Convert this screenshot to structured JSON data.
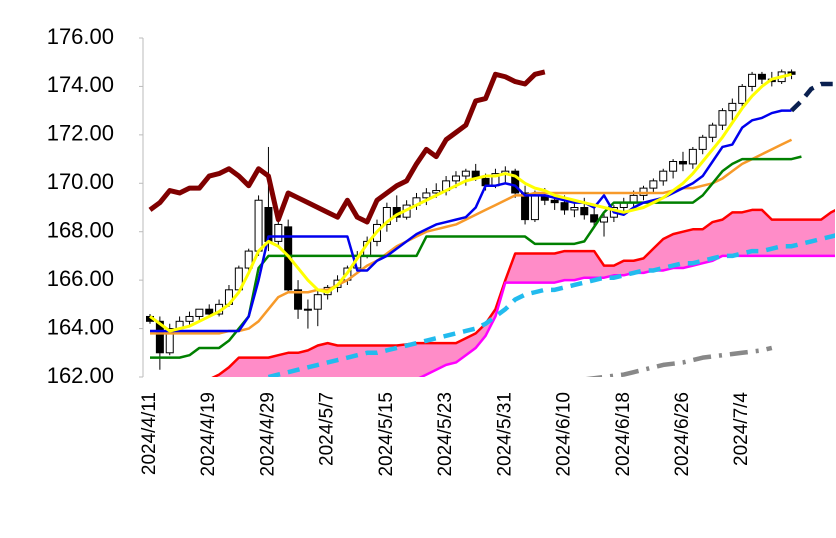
{
  "chart_data": {
    "type": "candlestick",
    "categories": [
      "2024/4/11",
      null,
      null,
      null,
      null,
      null,
      "2024/4/19",
      null,
      null,
      null,
      null,
      null,
      "2024/4/29",
      null,
      null,
      null,
      null,
      null,
      "2024/5/7",
      null,
      null,
      null,
      null,
      null,
      "2024/5/15",
      null,
      null,
      null,
      null,
      null,
      "2024/5/23",
      null,
      null,
      null,
      null,
      null,
      "2024/5/31",
      null,
      null,
      null,
      null,
      null,
      "2024/6/10",
      null,
      null,
      null,
      null,
      null,
      "2024/6/18",
      null,
      null,
      null,
      null,
      null,
      "2024/6/26",
      null,
      null,
      null,
      null,
      null,
      "2024/7/4",
      null,
      null,
      null,
      null,
      null,
      null,
      null,
      null,
      null,
      null
    ],
    "candles": [
      [
        164.5,
        164.6,
        164.2,
        164.3
      ],
      [
        164.3,
        164.5,
        162.3,
        163.0
      ],
      [
        163.0,
        164.2,
        162.9,
        164.0
      ],
      [
        164.0,
        164.5,
        163.9,
        164.3
      ],
      [
        164.3,
        164.7,
        164.1,
        164.5
      ],
      [
        164.5,
        164.8,
        164.3,
        164.8
      ],
      [
        164.8,
        165.0,
        164.5,
        164.6
      ],
      [
        164.6,
        165.2,
        164.5,
        165.0
      ],
      [
        165.0,
        165.8,
        164.9,
        165.6
      ],
      [
        165.6,
        166.6,
        165.5,
        166.5
      ],
      [
        166.5,
        167.3,
        166.3,
        167.2
      ],
      [
        167.2,
        169.5,
        167.0,
        169.3
      ],
      [
        169.0,
        171.5,
        167.2,
        167.6
      ],
      [
        167.6,
        168.6,
        167.4,
        168.3
      ],
      [
        168.2,
        168.5,
        165.5,
        165.6
      ],
      [
        165.6,
        166.0,
        164.4,
        164.8
      ],
      [
        164.8,
        165.2,
        164.0,
        164.8
      ],
      [
        164.8,
        165.6,
        164.1,
        165.4
      ],
      [
        165.4,
        165.8,
        165.2,
        165.7
      ],
      [
        165.7,
        166.2,
        165.5,
        166.0
      ],
      [
        166.0,
        166.6,
        165.8,
        166.5
      ],
      [
        166.5,
        167.2,
        166.3,
        167.0
      ],
      [
        167.0,
        167.8,
        166.9,
        167.6
      ],
      [
        167.6,
        168.5,
        167.4,
        168.3
      ],
      [
        168.3,
        169.2,
        168.0,
        169.0
      ],
      [
        169.0,
        169.5,
        168.4,
        168.6
      ],
      [
        168.6,
        169.3,
        168.5,
        169.1
      ],
      [
        169.1,
        169.6,
        168.9,
        169.4
      ],
      [
        169.4,
        169.8,
        169.1,
        169.6
      ],
      [
        169.6,
        170.0,
        169.4,
        169.7
      ],
      [
        169.7,
        170.3,
        169.5,
        170.1
      ],
      [
        170.1,
        170.5,
        169.8,
        170.3
      ],
      [
        170.3,
        170.6,
        169.9,
        170.5
      ],
      [
        170.5,
        170.8,
        170.1,
        170.2
      ],
      [
        170.2,
        170.4,
        169.7,
        169.9
      ],
      [
        169.9,
        170.6,
        169.8,
        170.4
      ],
      [
        170.4,
        170.7,
        170.0,
        170.5
      ],
      [
        170.5,
        170.6,
        169.4,
        169.6
      ],
      [
        169.6,
        169.9,
        168.3,
        168.5
      ],
      [
        168.5,
        169.7,
        168.4,
        169.5
      ],
      [
        169.5,
        169.8,
        169.1,
        169.3
      ],
      [
        169.3,
        169.6,
        168.9,
        169.2
      ],
      [
        169.2,
        169.5,
        168.7,
        168.9
      ],
      [
        168.9,
        169.3,
        168.6,
        169.0
      ],
      [
        169.0,
        169.4,
        168.5,
        168.7
      ],
      [
        168.7,
        169.0,
        168.2,
        168.4
      ],
      [
        168.4,
        168.8,
        167.8,
        168.6
      ],
      [
        168.6,
        169.1,
        168.4,
        169.0
      ],
      [
        169.0,
        169.4,
        168.8,
        169.2
      ],
      [
        169.2,
        169.7,
        169.0,
        169.5
      ],
      [
        169.5,
        169.9,
        169.3,
        169.8
      ],
      [
        169.8,
        170.2,
        169.6,
        170.1
      ],
      [
        170.1,
        170.6,
        169.9,
        170.5
      ],
      [
        170.5,
        171.0,
        170.2,
        170.9
      ],
      [
        170.9,
        171.3,
        170.5,
        170.8
      ],
      [
        170.8,
        171.5,
        170.6,
        171.4
      ],
      [
        171.4,
        172.0,
        171.2,
        171.9
      ],
      [
        171.9,
        172.5,
        171.7,
        172.4
      ],
      [
        172.4,
        173.1,
        172.2,
        173.0
      ],
      [
        173.0,
        173.5,
        172.6,
        173.3
      ],
      [
        173.3,
        174.1,
        173.1,
        174.0
      ],
      [
        174.0,
        174.6,
        173.8,
        174.5
      ],
      [
        174.5,
        174.6,
        174.1,
        174.3
      ],
      [
        174.3,
        174.6,
        174.0,
        174.2
      ],
      [
        174.2,
        174.7,
        174.1,
        174.6
      ],
      [
        174.6,
        174.7,
        174.3,
        174.5
      ]
    ],
    "cloud": {
      "color": "#ff8cc8",
      "between": [
        0,
        1
      ]
    },
    "series": [
      {
        "color": "#ff0000",
        "width": 2.5,
        "values": [
          null,
          null,
          null,
          null,
          null,
          null,
          161.9,
          162.1,
          162.4,
          162.8,
          162.8,
          162.8,
          162.8,
          162.9,
          163.0,
          163.0,
          163.1,
          163.3,
          163.4,
          163.3,
          163.3,
          163.3,
          163.3,
          163.3,
          163.3,
          163.3,
          163.35,
          163.4,
          163.4,
          163.4,
          163.4,
          163.4,
          163.6,
          163.8,
          164.2,
          164.8,
          166.0,
          167.1,
          167.1,
          167.1,
          167.1,
          167.1,
          167.2,
          167.2,
          167.2,
          167.2,
          166.6,
          166.6,
          166.8,
          166.8,
          166.9,
          167.3,
          167.7,
          167.9,
          168.0,
          168.1,
          168.1,
          168.4,
          168.5,
          168.8,
          168.8,
          168.9,
          168.9,
          168.5,
          168.5,
          168.5,
          168.5,
          168.5,
          168.5,
          168.8,
          169.0
        ]
      },
      {
        "color": "#ff00ff",
        "width": 2.5,
        "values": [
          null,
          null,
          null,
          null,
          null,
          null,
          161.0,
          161.0,
          161.0,
          161.0,
          161.1,
          161.1,
          161.2,
          161.2,
          161.3,
          161.3,
          161.4,
          161.4,
          161.5,
          161.5,
          161.6,
          161.6,
          161.7,
          161.7,
          161.8,
          161.8,
          161.9,
          161.9,
          162.1,
          162.3,
          162.5,
          162.6,
          162.9,
          163.2,
          163.7,
          164.5,
          165.9,
          165.9,
          165.9,
          165.9,
          165.9,
          165.9,
          166.0,
          166.0,
          166.1,
          166.1,
          166.1,
          166.2,
          166.2,
          166.3,
          166.3,
          166.4,
          166.4,
          166.5,
          166.5,
          166.6,
          166.7,
          166.8,
          167.0,
          167.0,
          167.0,
          167.0,
          167.0,
          167.0,
          167.0,
          167.0,
          167.0,
          167.0,
          167.0,
          167.0,
          167.0
        ]
      },
      {
        "color": "#22bbee",
        "width": 4.5,
        "style": "dashed",
        "values": [
          null,
          null,
          null,
          null,
          null,
          null,
          null,
          null,
          null,
          null,
          null,
          null,
          162.0,
          162.1,
          162.2,
          162.3,
          162.4,
          162.5,
          162.6,
          162.7,
          162.8,
          162.9,
          163.0,
          163.0,
          163.1,
          163.2,
          163.3,
          163.4,
          163.5,
          163.6,
          163.7,
          163.8,
          163.9,
          164.0,
          164.2,
          164.5,
          164.8,
          165.2,
          165.4,
          165.5,
          165.6,
          165.6,
          165.7,
          165.8,
          165.9,
          166.0,
          166.1,
          166.1,
          166.2,
          166.3,
          166.4,
          166.4,
          166.5,
          166.6,
          166.7,
          166.7,
          166.8,
          166.9,
          167.0,
          167.0,
          167.1,
          167.2,
          167.2,
          167.3,
          167.4,
          167.4,
          167.5,
          167.6,
          167.7,
          167.8,
          167.9
        ]
      },
      {
        "color": "#888888",
        "width": 4.5,
        "style": "dashdot",
        "values": [
          null,
          null,
          null,
          null,
          null,
          null,
          null,
          null,
          null,
          null,
          null,
          null,
          null,
          null,
          null,
          null,
          null,
          null,
          null,
          null,
          null,
          null,
          null,
          null,
          null,
          null,
          null,
          null,
          null,
          null,
          null,
          null,
          null,
          null,
          null,
          null,
          null,
          null,
          null,
          null,
          null,
          null,
          null,
          null,
          161.9,
          161.95,
          162.0,
          162.05,
          162.1,
          162.2,
          162.3,
          162.4,
          162.5,
          162.55,
          162.6,
          162.7,
          162.8,
          162.85,
          162.9,
          162.95,
          163.0,
          163.05,
          163.1,
          163.2,
          null,
          null,
          null,
          null,
          null,
          null,
          null
        ]
      },
      {
        "color": "#f79a2a",
        "width": 2.5,
        "values": [
          163.8,
          163.8,
          163.8,
          163.8,
          163.8,
          163.8,
          163.8,
          163.8,
          163.9,
          163.9,
          164.0,
          164.3,
          164.8,
          165.3,
          165.5,
          165.5,
          165.5,
          165.6,
          165.6,
          165.8,
          166.0,
          166.3,
          166.6,
          166.8,
          167.1,
          167.4,
          167.6,
          167.8,
          168.0,
          168.1,
          168.2,
          168.3,
          168.5,
          168.7,
          168.9,
          169.1,
          169.3,
          169.5,
          169.5,
          169.6,
          169.6,
          169.6,
          169.6,
          169.6,
          169.6,
          169.6,
          169.6,
          169.6,
          169.6,
          169.6,
          169.6,
          169.6,
          169.6,
          169.7,
          169.8,
          169.8,
          169.9,
          170.0,
          170.2,
          170.5,
          170.8,
          171.0,
          171.2,
          171.4,
          171.6,
          171.8,
          null,
          null,
          null,
          null,
          null
        ]
      },
      {
        "color": "#008000",
        "width": 2.5,
        "values": [
          162.8,
          162.8,
          162.8,
          162.8,
          162.9,
          163.2,
          163.2,
          163.2,
          163.5,
          164.0,
          164.5,
          166.5,
          167.0,
          167.0,
          167.0,
          167.0,
          167.0,
          167.0,
          167.0,
          167.0,
          167.0,
          167.0,
          167.0,
          167.0,
          167.0,
          167.0,
          167.0,
          167.0,
          167.8,
          167.8,
          167.8,
          167.8,
          167.8,
          167.8,
          167.8,
          167.8,
          167.8,
          167.8,
          167.8,
          167.5,
          167.5,
          167.5,
          167.5,
          167.5,
          167.6,
          168.2,
          168.8,
          169.2,
          169.2,
          169.2,
          169.2,
          169.2,
          169.2,
          169.2,
          169.2,
          169.2,
          169.5,
          170.0,
          170.5,
          170.8,
          171.0,
          171.0,
          171.0,
          171.0,
          171.0,
          171.0,
          171.1,
          null,
          null,
          null,
          null
        ]
      },
      {
        "color": "#0000ee",
        "width": 2.5,
        "values": [
          163.9,
          163.9,
          163.9,
          163.9,
          163.9,
          163.9,
          163.9,
          163.9,
          163.9,
          163.9,
          164.5,
          166.0,
          167.8,
          167.8,
          167.8,
          167.8,
          167.8,
          167.8,
          167.8,
          167.8,
          167.8,
          166.4,
          166.4,
          166.8,
          167.0,
          167.3,
          167.6,
          167.9,
          168.1,
          168.3,
          168.4,
          168.5,
          168.6,
          169.0,
          169.9,
          169.9,
          170.0,
          169.9,
          169.5,
          169.5,
          169.5,
          169.4,
          169.3,
          169.2,
          169.2,
          169.0,
          169.5,
          168.8,
          168.7,
          169.0,
          169.2,
          169.3,
          169.4,
          169.6,
          169.8,
          170.0,
          170.3,
          170.9,
          171.5,
          171.6,
          172.3,
          172.6,
          172.7,
          172.9,
          173.0,
          173.0,
          null,
          null,
          null,
          null,
          null
        ]
      },
      {
        "color": "#0a2050",
        "width": 4.5,
        "style": "dashed",
        "values": [
          null,
          null,
          null,
          null,
          null,
          null,
          null,
          null,
          null,
          null,
          null,
          null,
          null,
          null,
          null,
          null,
          null,
          null,
          null,
          null,
          null,
          null,
          null,
          null,
          null,
          null,
          null,
          null,
          null,
          null,
          null,
          null,
          null,
          null,
          null,
          null,
          null,
          null,
          null,
          null,
          null,
          null,
          null,
          null,
          null,
          null,
          null,
          null,
          null,
          null,
          null,
          null,
          null,
          null,
          null,
          null,
          null,
          null,
          null,
          null,
          null,
          null,
          null,
          null,
          null,
          173.0,
          173.4,
          173.9,
          174.1,
          174.1,
          174.1
        ]
      },
      {
        "color": "#ffff00",
        "width": 3,
        "values": [
          164.5,
          164.2,
          163.9,
          164.0,
          164.1,
          164.3,
          164.5,
          164.7,
          165.0,
          165.5,
          166.3,
          167.2,
          167.6,
          167.4,
          167.0,
          166.5,
          166.0,
          165.6,
          165.5,
          165.8,
          166.3,
          166.9,
          167.5,
          168.0,
          168.4,
          168.7,
          168.9,
          169.1,
          169.3,
          169.5,
          169.7,
          169.9,
          170.1,
          170.2,
          170.3,
          170.3,
          170.4,
          170.3,
          170.0,
          169.8,
          169.7,
          169.5,
          169.4,
          169.3,
          169.2,
          169.1,
          169.0,
          168.9,
          168.8,
          168.9,
          169.0,
          169.2,
          169.4,
          169.7,
          170.0,
          170.4,
          170.9,
          171.4,
          171.9,
          172.5,
          173.1,
          173.6,
          174.0,
          174.3,
          174.4,
          174.5,
          null,
          null,
          null,
          null,
          null
        ]
      },
      {
        "color": "#800000",
        "width": 5,
        "values": [
          168.9,
          169.2,
          169.7,
          169.6,
          169.8,
          169.8,
          170.3,
          170.4,
          170.6,
          170.3,
          169.9,
          170.6,
          170.3,
          168.5,
          169.6,
          169.4,
          169.2,
          169.0,
          168.8,
          168.6,
          169.3,
          168.6,
          168.4,
          169.3,
          169.6,
          169.9,
          170.1,
          170.8,
          171.4,
          171.1,
          171.8,
          172.1,
          172.4,
          173.4,
          173.5,
          174.5,
          174.4,
          174.2,
          174.1,
          174.5,
          174.6,
          null,
          null,
          null,
          null,
          null,
          null,
          null,
          null,
          null,
          null,
          null,
          null,
          null,
          null,
          null,
          null,
          null,
          null,
          null,
          null,
          null,
          null,
          null,
          null,
          null,
          null,
          null,
          null,
          null,
          null
        ]
      }
    ],
    "ylim": [
      162,
      176
    ],
    "yticks": [
      {
        "value": 162,
        "label": "162.00"
      },
      {
        "value": 164,
        "label": "164.00"
      },
      {
        "value": 166,
        "label": "166.00"
      },
      {
        "value": 168,
        "label": "168.00"
      },
      {
        "value": 170,
        "label": "170.00"
      },
      {
        "value": 172,
        "label": "172.00"
      },
      {
        "value": 174,
        "label": "174.00"
      },
      {
        "value": 176,
        "label": "176.00"
      }
    ],
    "grid": false
  }
}
